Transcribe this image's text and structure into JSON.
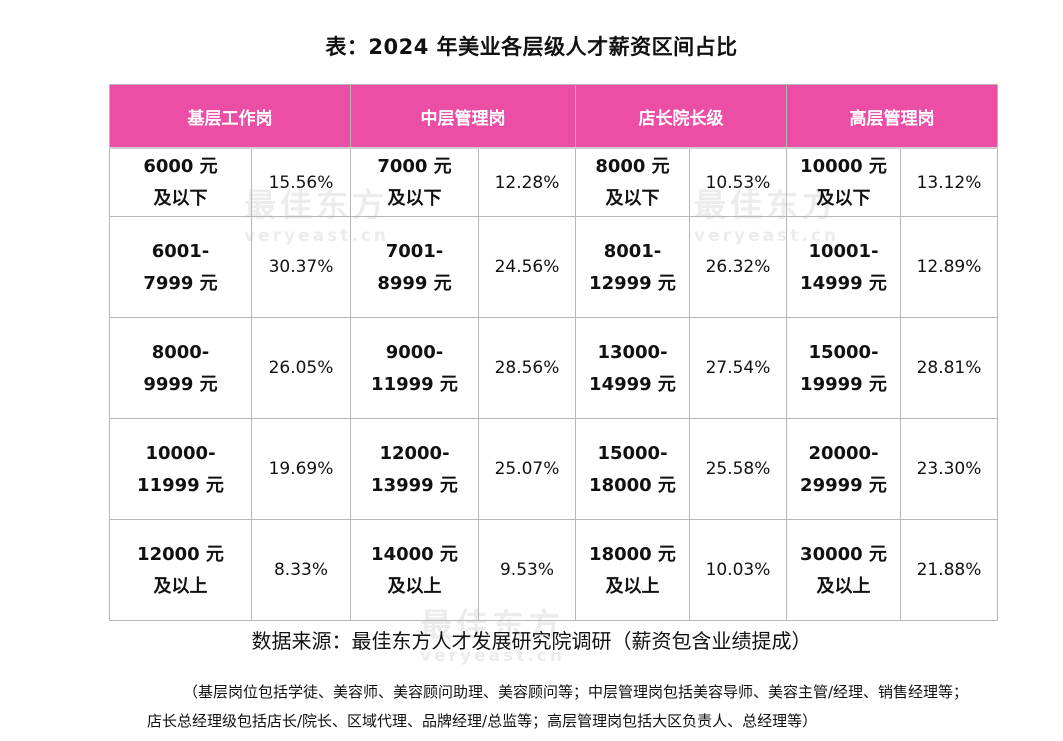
{
  "title": "表：2024 年美业各层级人才薪资区间占比",
  "headers": [
    "基层工作岗",
    "中层管理岗",
    "店长院长级",
    "高层管理岗"
  ],
  "rows": [
    [
      {
        "range": [
          "6000 元",
          "及以下"
        ],
        "pct": "15.56%"
      },
      {
        "range": [
          "7000 元",
          "及以下"
        ],
        "pct": "12.28%"
      },
      {
        "range": [
          "8000 元",
          "及以下"
        ],
        "pct": "10.53%"
      },
      {
        "range": [
          "10000 元",
          "及以下"
        ],
        "pct": "13.12%"
      }
    ],
    [
      {
        "range": [
          "6001-",
          "7999 元"
        ],
        "pct": "30.37%"
      },
      {
        "range": [
          "7001-",
          "8999 元"
        ],
        "pct": "24.56%"
      },
      {
        "range": [
          "8001-",
          "12999 元"
        ],
        "pct": "26.32%"
      },
      {
        "range": [
          "10001-",
          "14999 元"
        ],
        "pct": "12.89%"
      }
    ],
    [
      {
        "range": [
          "8000-",
          "9999 元"
        ],
        "pct": "26.05%"
      },
      {
        "range": [
          "9000-",
          "11999 元"
        ],
        "pct": "28.56%"
      },
      {
        "range": [
          "13000-",
          "14999 元"
        ],
        "pct": "27.54%"
      },
      {
        "range": [
          "15000-",
          "19999 元"
        ],
        "pct": "28.81%"
      }
    ],
    [
      {
        "range": [
          "10000-",
          "11999 元"
        ],
        "pct": "19.69%"
      },
      {
        "range": [
          "12000-",
          "13999 元"
        ],
        "pct": "25.07%"
      },
      {
        "range": [
          "15000-",
          "18000 元"
        ],
        "pct": "25.58%"
      },
      {
        "range": [
          "20000-",
          "29999 元"
        ],
        "pct": "23.30%"
      }
    ],
    [
      {
        "range": [
          "12000 元",
          "及以上"
        ],
        "pct": "8.33%"
      },
      {
        "range": [
          "14000 元",
          "及以上"
        ],
        "pct": "9.53%"
      },
      {
        "range": [
          "18000 元",
          "及以上"
        ],
        "pct": "10.03%"
      },
      {
        "range": [
          "30000 元",
          "及以上"
        ],
        "pct": "21.88%"
      }
    ]
  ],
  "source": "数据来源：最佳东方人才发展研究院调研（薪资包含业绩提成）",
  "note": "（基层岗位包括学徒、美容师、美容顾问助理、美容顾问等；中层管理岗包括美容导师、美容主管/经理、销售经理等；店长总经理级包括店长/院长、区域代理、品牌经理/总监等；高层管理岗包括大区负责人、总经理等）",
  "watermark": {
    "cn": "最佳东方",
    "en": "veryeast.cn"
  },
  "colors": {
    "header_bg": "#ec4ea6",
    "header_text": "#ffffff",
    "border": "#b7b7b7"
  }
}
